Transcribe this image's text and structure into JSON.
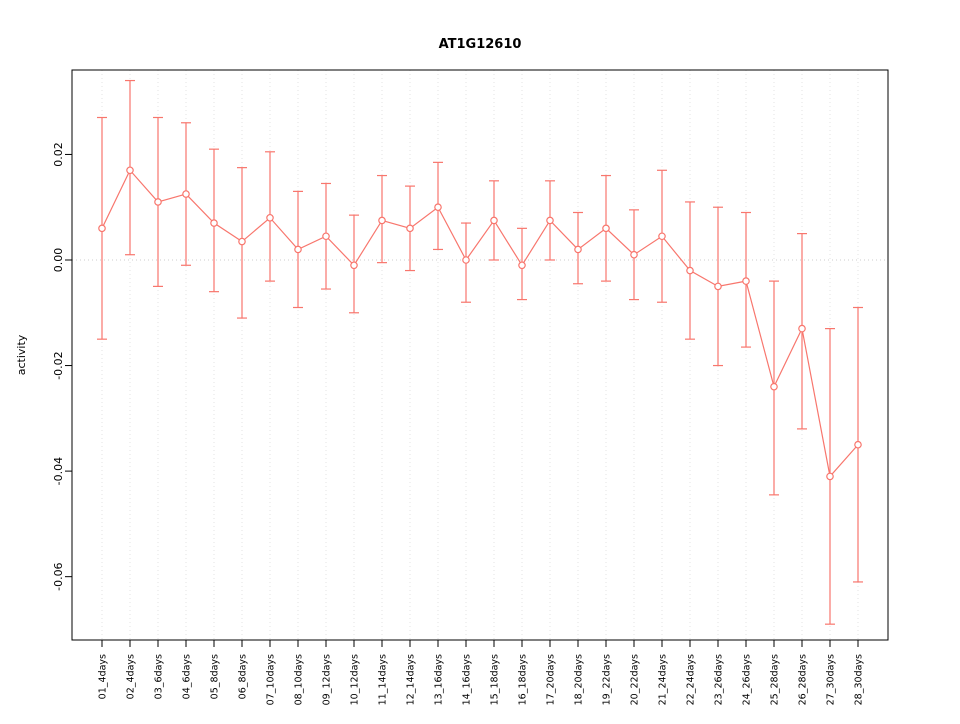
{
  "chart_data": {
    "type": "line",
    "title": "AT1G12610",
    "xlabel": "",
    "ylabel": "activity",
    "error_bars": true,
    "point_style": "open-circle",
    "legend": "none",
    "grid": "dotted vertical line at each category; dotted horizontal line at y=0",
    "ylim": [
      -0.072,
      0.036
    ],
    "yticks": [
      0.02,
      0.0,
      -0.02,
      -0.04,
      -0.06
    ],
    "categories": [
      "01_4days",
      "02_4days",
      "03_6days",
      "04_6days",
      "05_8days",
      "06_8days",
      "07_10days",
      "08_10days",
      "09_12days",
      "10_12days",
      "11_14days",
      "12_14days",
      "13_16days",
      "14_16days",
      "15_18days",
      "16_18days",
      "17_20days",
      "18_20days",
      "19_22days",
      "20_22days",
      "21_24days",
      "22_24days",
      "23_26days",
      "24_26days",
      "25_28days",
      "26_28days",
      "27_30days",
      "28_30days"
    ],
    "series": [
      {
        "name": "activity",
        "values": [
          0.006,
          0.017,
          0.011,
          0.0125,
          0.007,
          0.0035,
          0.008,
          0.002,
          0.0045,
          -0.001,
          0.0075,
          0.006,
          0.01,
          0.0,
          0.0075,
          -0.001,
          0.0075,
          0.002,
          0.006,
          0.001,
          0.0045,
          -0.002,
          -0.005,
          -0.004,
          -0.024,
          -0.013,
          -0.041,
          -0.035
        ],
        "lower": [
          -0.015,
          0.001,
          -0.005,
          -0.001,
          -0.006,
          -0.011,
          -0.004,
          -0.009,
          -0.0055,
          -0.01,
          -0.0005,
          -0.002,
          0.002,
          -0.008,
          0.0,
          -0.0075,
          0.0,
          -0.0045,
          -0.004,
          -0.0075,
          -0.008,
          -0.015,
          -0.02,
          -0.0165,
          -0.0445,
          -0.032,
          -0.069,
          -0.061
        ],
        "upper": [
          0.027,
          0.034,
          0.027,
          0.026,
          0.021,
          0.0175,
          0.0205,
          0.013,
          0.0145,
          0.0085,
          0.016,
          0.014,
          0.0185,
          0.007,
          0.015,
          0.006,
          0.015,
          0.009,
          0.016,
          0.0095,
          0.017,
          0.011,
          0.01,
          0.009,
          -0.004,
          0.005,
          -0.013,
          -0.009
        ]
      }
    ],
    "colors": {
      "series": "#F8766D",
      "grid": "#e3e3e3",
      "zero_line": "#cccccc",
      "axis": "#000000",
      "background": "#ffffff"
    }
  }
}
